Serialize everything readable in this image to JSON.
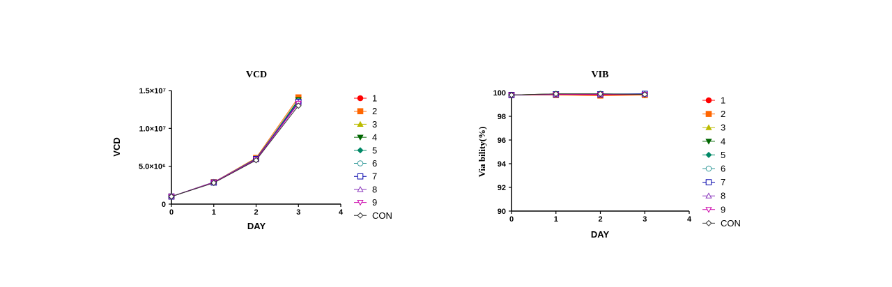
{
  "chart_data": [
    {
      "type": "line",
      "title": "VCD",
      "xlabel": "DAY",
      "ylabel": "VCD",
      "xlim": [
        0,
        4
      ],
      "ylim": [
        0,
        15000000
      ],
      "x_ticks": [
        0,
        1,
        2,
        3,
        4
      ],
      "x_tick_labels": [
        "0",
        "1",
        "2",
        "3",
        "4"
      ],
      "y_ticks": [
        0,
        5000000,
        10000000,
        15000000
      ],
      "y_tick_labels": [
        "0",
        "5.0×10⁶",
        "1.0×10⁷",
        "1.5×10⁷"
      ],
      "grid": false,
      "legend_position": "right",
      "x": [
        0,
        1,
        2,
        3
      ],
      "series": [
        {
          "name": "1",
          "color": "#ff0000",
          "marker": "circle-filled",
          "values": [
            1000000,
            2900000,
            6000000,
            13500000
          ]
        },
        {
          "name": "2",
          "color": "#ff6600",
          "marker": "square-filled",
          "values": [
            1000000,
            2900000,
            6100000,
            14100000
          ]
        },
        {
          "name": "3",
          "color": "#bbbb00",
          "marker": "triangle-up-filled",
          "values": [
            1000000,
            2850000,
            6000000,
            13700000
          ]
        },
        {
          "name": "4",
          "color": "#006600",
          "marker": "triangle-down-filled",
          "values": [
            1000000,
            2900000,
            5900000,
            13800000
          ]
        },
        {
          "name": "5",
          "color": "#008866",
          "marker": "diamond-filled",
          "values": [
            1000000,
            2850000,
            6000000,
            13600000
          ]
        },
        {
          "name": "6",
          "color": "#339999",
          "marker": "circle-open",
          "values": [
            1000000,
            2900000,
            6000000,
            13600000
          ]
        },
        {
          "name": "7",
          "color": "#0000aa",
          "marker": "square-open",
          "values": [
            1000000,
            2850000,
            5950000,
            13500000
          ]
        },
        {
          "name": "8",
          "color": "#8833bb",
          "marker": "triangle-up-open",
          "values": [
            1000000,
            2900000,
            5900000,
            13400000
          ]
        },
        {
          "name": "9",
          "color": "#cc00aa",
          "marker": "triangle-down-open",
          "values": [
            1000000,
            2850000,
            5900000,
            13300000
          ]
        },
        {
          "name": "CON",
          "color": "#333333",
          "marker": "diamond-open",
          "values": [
            1000000,
            2800000,
            5800000,
            13000000
          ]
        }
      ]
    },
    {
      "type": "line",
      "title": "VIB",
      "xlabel": "DAY",
      "ylabel": "Via bility(%)",
      "xlim": [
        0,
        4
      ],
      "ylim": [
        90,
        100
      ],
      "x_ticks": [
        0,
        1,
        2,
        3,
        4
      ],
      "x_tick_labels": [
        "0",
        "1",
        "2",
        "3",
        "4"
      ],
      "y_ticks": [
        90,
        92,
        94,
        96,
        98,
        100
      ],
      "y_tick_labels": [
        "90",
        "92",
        "94",
        "96",
        "98",
        "100"
      ],
      "grid": false,
      "legend_position": "right",
      "x": [
        0,
        1,
        2,
        3
      ],
      "series": [
        {
          "name": "1",
          "color": "#ff0000",
          "marker": "circle-filled",
          "values": [
            99.8,
            99.85,
            99.8,
            99.8
          ]
        },
        {
          "name": "2",
          "color": "#ff6600",
          "marker": "square-filled",
          "values": [
            99.8,
            99.8,
            99.75,
            99.8
          ]
        },
        {
          "name": "3",
          "color": "#bbbb00",
          "marker": "triangle-up-filled",
          "values": [
            99.8,
            99.9,
            99.85,
            99.85
          ]
        },
        {
          "name": "4",
          "color": "#006600",
          "marker": "triangle-down-filled",
          "values": [
            99.8,
            99.9,
            99.9,
            99.85
          ]
        },
        {
          "name": "5",
          "color": "#008866",
          "marker": "diamond-filled",
          "values": [
            99.8,
            99.85,
            99.85,
            99.85
          ]
        },
        {
          "name": "6",
          "color": "#339999",
          "marker": "circle-open",
          "values": [
            99.8,
            99.85,
            99.9,
            99.9
          ]
        },
        {
          "name": "7",
          "color": "#0000aa",
          "marker": "square-open",
          "values": [
            99.8,
            99.85,
            99.85,
            99.9
          ]
        },
        {
          "name": "8",
          "color": "#8833bb",
          "marker": "triangle-up-open",
          "values": [
            99.8,
            99.85,
            99.85,
            99.85
          ]
        },
        {
          "name": "9",
          "color": "#cc00aa",
          "marker": "triangle-down-open",
          "values": [
            99.8,
            99.85,
            99.85,
            99.85
          ]
        },
        {
          "name": "CON",
          "color": "#333333",
          "marker": "diamond-open",
          "values": [
            99.8,
            99.9,
            99.9,
            99.85
          ]
        }
      ]
    }
  ]
}
